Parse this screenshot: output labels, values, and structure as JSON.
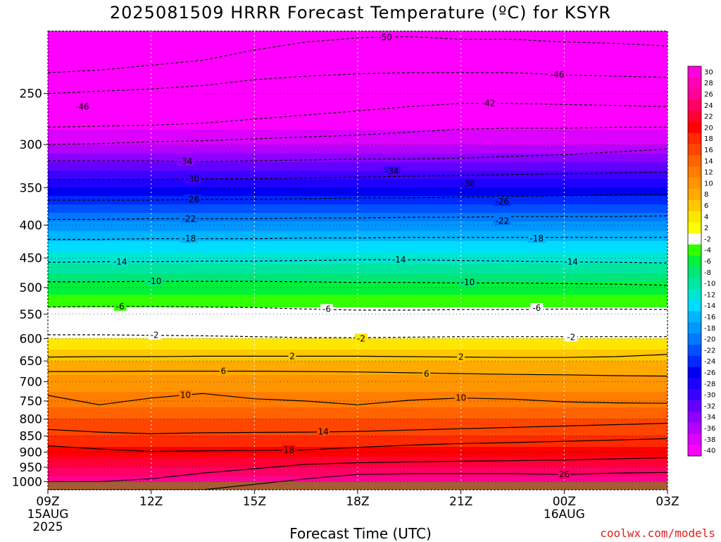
{
  "title": "2025081509 HRRR Forecast Temperature (ºC) for KSYR",
  "credit": "coolwx.com/models",
  "chart_data": {
    "type": "heatmap",
    "title": "2025081509 HRRR Forecast Temperature (ºC) for KSYR",
    "xlabel": "Forecast Time (UTC)",
    "ylabel": "",
    "x": {
      "range_hours": [
        0,
        18
      ],
      "ticks": [
        {
          "hour": 0,
          "label": "09Z",
          "sub1": "15AUG",
          "sub2": "2025"
        },
        {
          "hour": 3,
          "label": "12Z",
          "sub1": "",
          "sub2": ""
        },
        {
          "hour": 6,
          "label": "15Z",
          "sub1": "",
          "sub2": ""
        },
        {
          "hour": 9,
          "label": "18Z",
          "sub1": "",
          "sub2": ""
        },
        {
          "hour": 12,
          "label": "21Z",
          "sub1": "",
          "sub2": ""
        },
        {
          "hour": 15,
          "label": "00Z",
          "sub1": "16AUG",
          "sub2": ""
        },
        {
          "hour": 18,
          "label": "03Z",
          "sub1": "",
          "sub2": ""
        }
      ]
    },
    "y": {
      "scale": "log",
      "reversed": true,
      "range_hpa": [
        200,
        1030
      ],
      "ticks": [
        250,
        300,
        350,
        400,
        450,
        500,
        550,
        600,
        650,
        700,
        750,
        800,
        850,
        900,
        950,
        1000
      ]
    },
    "ground_pressure_hpa": 1000,
    "ground_color": "#a65c35",
    "colorbar": {
      "bands": [
        {
          "label": "30",
          "color": "#ff00dc"
        },
        {
          "label": "28",
          "color": "#ff00b4"
        },
        {
          "label": "26",
          "color": "#ff0096"
        },
        {
          "label": "24",
          "color": "#ff0064"
        },
        {
          "label": "22",
          "color": "#ff0032"
        },
        {
          "label": "20",
          "color": "#ff0000"
        },
        {
          "label": "18",
          "color": "#ff2a00"
        },
        {
          "label": "16",
          "color": "#ff4600"
        },
        {
          "label": "14",
          "color": "#ff6400"
        },
        {
          "label": "12",
          "color": "#ff7d00"
        },
        {
          "label": "10",
          "color": "#ff9600"
        },
        {
          "label": "8",
          "color": "#ffaa00"
        },
        {
          "label": "6",
          "color": "#ffc800"
        },
        {
          "label": "4",
          "color": "#ffe600"
        },
        {
          "label": "2",
          "color": "#ffff00"
        },
        {
          "label": "-2",
          "color": "#ffffff"
        },
        {
          "label": "-4",
          "color": "#32ff00"
        },
        {
          "label": "-6",
          "color": "#00f03c"
        },
        {
          "label": "-8",
          "color": "#00e678"
        },
        {
          "label": "-10",
          "color": "#00e6a0"
        },
        {
          "label": "-12",
          "color": "#00e6d2"
        },
        {
          "label": "-14",
          "color": "#00dcff"
        },
        {
          "label": "-16",
          "color": "#00b4ff"
        },
        {
          "label": "-18",
          "color": "#0096ff"
        },
        {
          "label": "-20",
          "color": "#0078ff"
        },
        {
          "label": "-22",
          "color": "#0050ff"
        },
        {
          "label": "-24",
          "color": "#0028ff"
        },
        {
          "label": "-26",
          "color": "#0000f0"
        },
        {
          "label": "-28",
          "color": "#1e00ff"
        },
        {
          "label": "-30",
          "color": "#3c00ff"
        },
        {
          "label": "-32",
          "color": "#6400ff"
        },
        {
          "label": "-34",
          "color": "#8c00ff"
        },
        {
          "label": "-36",
          "color": "#b400ff"
        },
        {
          "label": "-38",
          "color": "#dc00ff"
        },
        {
          "label": "-40",
          "color": "#ff00ff"
        }
      ]
    },
    "contour_levels_c": [
      -50,
      -46,
      -42,
      -38,
      -34,
      -30,
      -26,
      -22,
      -18,
      -14,
      -10,
      -6,
      -2,
      2,
      6,
      10,
      14,
      18,
      22,
      26
    ],
    "temperature_profile": [
      {
        "p": 200,
        "t": -52
      },
      {
        "p": 250,
        "t": -45
      },
      {
        "p": 300,
        "t": -38
      },
      {
        "p": 350,
        "t": -28
      },
      {
        "p": 400,
        "t": -19
      },
      {
        "p": 450,
        "t": -13
      },
      {
        "p": 500,
        "t": -7
      },
      {
        "p": 550,
        "t": -3
      },
      {
        "p": 600,
        "t": 2
      },
      {
        "p": 650,
        "t": 6
      },
      {
        "p": 700,
        "t": 9
      },
      {
        "p": 750,
        "t": 11
      },
      {
        "p": 800,
        "t": 14
      },
      {
        "p": 850,
        "t": 16
      },
      {
        "p": 900,
        "t": 19
      },
      {
        "p": 950,
        "t": 22
      },
      {
        "p": 1000,
        "t": 25
      }
    ],
    "contours": [
      {
        "level": -50,
        "label": "-50",
        "dashed": true,
        "color": "#000000",
        "label_hour": 9.8,
        "p": [
          232,
          230,
          226,
          222,
          214,
          208,
          205,
          204,
          206,
          206,
          208,
          209,
          211
        ]
      },
      {
        "level": -46,
        "label": "-46",
        "dashed": true,
        "color": "#000000",
        "label_hour": 14.8,
        "p": [
          250,
          248,
          246,
          243,
          238,
          235,
          233,
          232,
          232,
          232,
          234,
          235,
          236
        ]
      },
      {
        "level": -46,
        "label": "-46",
        "dashed": true,
        "color": "#000000",
        "label_hour": 1.0,
        "p": [
          262,
          262,
          262,
          262,
          262,
          262,
          262,
          262,
          262,
          262,
          262,
          262,
          262
        ],
        "hide_line": true
      },
      {
        "level": -42,
        "label": "-42",
        "dashed": true,
        "color": "#000000",
        "label_hour": 12.8,
        "p": [
          282,
          281,
          280,
          278,
          274,
          270,
          266,
          262,
          259,
          259,
          260,
          261,
          262
        ]
      },
      {
        "level": -38,
        "label": "",
        "dashed": true,
        "color": "#000000",
        "label_hour": 0,
        "p": [
          300,
          299,
          297,
          296,
          294,
          292,
          290,
          287,
          284,
          283,
          283,
          282,
          282
        ]
      },
      {
        "level": -34,
        "label": "-34",
        "dashed": true,
        "color": "#000000",
        "label_hour": 4.0,
        "p": [
          318,
          318,
          318,
          319,
          318,
          317,
          316,
          316,
          315,
          313,
          311,
          308,
          305
        ]
      },
      {
        "level": -34,
        "label": "-34",
        "dashed": true,
        "color": "#000000",
        "label_hour": 10.0,
        "p": [
          330,
          330,
          330,
          330,
          330,
          330,
          330,
          330,
          330,
          330,
          330,
          330,
          330
        ],
        "hide_line": true
      },
      {
        "level": -30,
        "label": "-30",
        "dashed": true,
        "color": "#000000",
        "label_hour": 4.2,
        "p": [
          340,
          340,
          340,
          339,
          339,
          338,
          337,
          336,
          335,
          334,
          333,
          332,
          331
        ]
      },
      {
        "level": -30,
        "label": "-30",
        "dashed": true,
        "color": "#000000",
        "label_hour": 12.2,
        "p": [
          345,
          345,
          345,
          345,
          345,
          345,
          345,
          345,
          345,
          345,
          345,
          345,
          345
        ],
        "hide_line": true
      },
      {
        "level": -26,
        "label": "-26",
        "dashed": true,
        "color": "#000000",
        "label_hour": 4.2,
        "p": [
          366,
          366,
          366,
          365,
          365,
          364,
          363,
          363,
          362,
          361,
          360,
          359,
          358
        ]
      },
      {
        "level": -26,
        "label": "-26",
        "dashed": true,
        "color": "#000000",
        "label_hour": 13.2,
        "p": [
          368,
          368,
          368,
          368,
          368,
          368,
          368,
          368,
          368,
          368,
          368,
          368,
          368
        ],
        "hide_line": true
      },
      {
        "level": -22,
        "label": "-22",
        "dashed": true,
        "color": "#000000",
        "label_hour": 4.1,
        "p": [
          392,
          392,
          391,
          391,
          391,
          390,
          390,
          389,
          389,
          388,
          388,
          388,
          387
        ]
      },
      {
        "level": -22,
        "label": "-22",
        "dashed": true,
        "color": "#000000",
        "label_hour": 13.2,
        "p": [
          394,
          394,
          394,
          394,
          394,
          394,
          394,
          394,
          394,
          394,
          394,
          394,
          394
        ],
        "hide_line": true
      },
      {
        "level": -18,
        "label": "-18",
        "dashed": true,
        "color": "#000000",
        "label_hour": 4.1,
        "p": [
          421,
          421,
          420,
          420,
          420,
          419,
          419,
          418,
          418,
          418,
          418,
          418,
          418
        ]
      },
      {
        "level": -18,
        "label": "-18",
        "dashed": true,
        "color": "#000000",
        "label_hour": 14.2,
        "p": [
          420,
          420,
          420,
          420,
          420,
          420,
          420,
          420,
          420,
          420,
          420,
          420,
          420
        ],
        "hide_line": true
      },
      {
        "level": -14,
        "label": "-14",
        "dashed": true,
        "color": "#000000",
        "label_hour": 2.1,
        "p": [
          457,
          456,
          456,
          455,
          455,
          454,
          453,
          453,
          454,
          455,
          456,
          457,
          458
        ]
      },
      {
        "level": -14,
        "label": "-14",
        "dashed": true,
        "color": "#000000",
        "label_hour": 10.2,
        "p": [
          453,
          453,
          453,
          453,
          453,
          453,
          453,
          453,
          453,
          453,
          453,
          453,
          453
        ],
        "hide_line": true
      },
      {
        "level": -14,
        "label": "-14",
        "dashed": true,
        "color": "#000000",
        "label_hour": 15.2,
        "p": [
          456,
          456,
          456,
          456,
          456,
          456,
          456,
          456,
          456,
          456,
          456,
          456,
          456
        ],
        "hide_line": true
      },
      {
        "level": -10,
        "label": "-10",
        "dashed": true,
        "color": "#000000",
        "label_hour": 3.1,
        "p": [
          490,
          490,
          489,
          489,
          489,
          490,
          491,
          491,
          492,
          492,
          493,
          494,
          496
        ]
      },
      {
        "level": -10,
        "label": "-10",
        "dashed": true,
        "color": "#000000",
        "label_hour": 12.2,
        "p": [
          491,
          491,
          491,
          491,
          491,
          491,
          491,
          491,
          491,
          491,
          491,
          491,
          491
        ],
        "hide_line": true
      },
      {
        "level": -6,
        "label": "-6",
        "dashed": true,
        "color": "#000000",
        "label_hour": 2.1,
        "p": [
          536,
          535,
          535,
          536,
          537,
          540,
          542,
          542,
          541,
          541,
          540,
          540,
          541
        ]
      },
      {
        "level": -6,
        "label": "-6",
        "dashed": true,
        "color": "#000000",
        "label_hour": 8.1,
        "p": [
          540,
          540,
          540,
          540,
          540,
          540,
          540,
          540,
          540,
          540,
          540,
          540,
          540
        ],
        "hide_line": true
      },
      {
        "level": -6,
        "label": "-6",
        "dashed": true,
        "color": "#000000",
        "label_hour": 14.2,
        "p": [
          538,
          538,
          538,
          538,
          538,
          538,
          538,
          538,
          538,
          538,
          538,
          538,
          538
        ],
        "hide_line": true
      },
      {
        "level": -2,
        "label": "-2",
        "dashed": true,
        "color": "#000000",
        "label_hour": 3.1,
        "p": [
          592,
          592,
          593,
          594,
          596,
          598,
          598,
          597,
          596,
          596,
          596,
          596,
          596
        ]
      },
      {
        "level": -2,
        "label": "-2",
        "dashed": true,
        "color": "#000000",
        "label_hour": 9.1,
        "p": [
          600,
          600,
          600,
          600,
          600,
          600,
          600,
          600,
          600,
          600,
          600,
          600,
          600
        ],
        "hide_line": true
      },
      {
        "level": -2,
        "label": "-2",
        "dashed": true,
        "color": "#000000",
        "label_hour": 15.2,
        "p": [
          597,
          597,
          597,
          597,
          597,
          597,
          597,
          597,
          597,
          597,
          597,
          597,
          597
        ],
        "hide_line": true
      },
      {
        "level": 2,
        "label": "2",
        "dashed": false,
        "color": "#000000",
        "label_hour": 7.1,
        "p": [
          641,
          640,
          640,
          639,
          639,
          639,
          639,
          640,
          641,
          642,
          642,
          640,
          635
        ]
      },
      {
        "level": 2,
        "label": "2",
        "dashed": false,
        "color": "#000000",
        "label_hour": 12.0,
        "p": [
          641,
          641,
          641,
          641,
          641,
          641,
          641,
          641,
          641,
          641,
          641,
          641,
          641
        ],
        "hide_line": true
      },
      {
        "level": 6,
        "label": "6",
        "dashed": false,
        "color": "#000000",
        "label_hour": 5.1,
        "p": [
          675,
          675,
          674,
          674,
          674,
          675,
          676,
          678,
          680,
          682,
          683,
          685,
          686
        ]
      },
      {
        "level": 6,
        "label": "6",
        "dashed": false,
        "color": "#000000",
        "label_hour": 11.0,
        "p": [
          681,
          681,
          681,
          681,
          681,
          681,
          681,
          681,
          681,
          681,
          681,
          681,
          681
        ],
        "hide_line": true
      },
      {
        "level": 10,
        "label": "10",
        "dashed": false,
        "color": "#000000",
        "label_hour": 4.0,
        "p": [
          735,
          760,
          742,
          730,
          744,
          750,
          760,
          748,
          742,
          745,
          752,
          755,
          756
        ]
      },
      {
        "level": 10,
        "label": "10",
        "dashed": false,
        "color": "#000000",
        "label_hour": 12.0,
        "p": [
          742,
          742,
          742,
          742,
          742,
          742,
          742,
          742,
          742,
          742,
          742,
          742,
          742
        ],
        "hide_line": true
      },
      {
        "level": 14,
        "label": "14",
        "dashed": false,
        "color": "#000000",
        "label_hour": 8.0,
        "p": [
          830,
          838,
          843,
          840,
          839,
          838,
          836,
          832,
          828,
          824,
          820,
          816,
          812
        ]
      },
      {
        "level": 18,
        "label": "18",
        "dashed": false,
        "color": "#000000",
        "label_hour": 7.0,
        "p": [
          880,
          890,
          898,
          896,
          895,
          893,
          885,
          878,
          873,
          870,
          866,
          862,
          858
        ]
      },
      {
        "level": 22,
        "label": "",
        "dashed": false,
        "color": "#000000",
        "label_hour": 0,
        "p": [
          1000,
          1000,
          990,
          970,
          955,
          940,
          935,
          932,
          930,
          928,
          926,
          922,
          918
        ]
      },
      {
        "level": 26,
        "label": "26",
        "dashed": false,
        "color": "#000000",
        "label_hour": 15.0,
        "p": [
          1030,
          1030,
          1030,
          1030,
          1010,
          990,
          975,
          972,
          972,
          972,
          975,
          970,
          968
        ]
      }
    ]
  }
}
